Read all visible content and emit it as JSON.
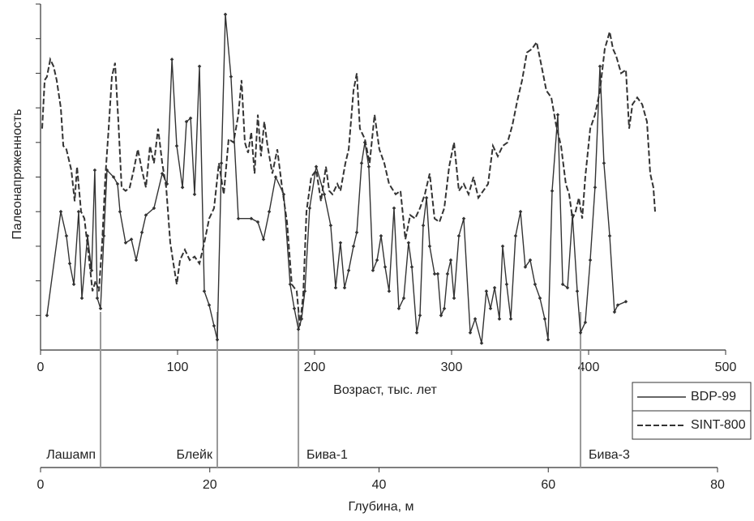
{
  "chart_data": {
    "type": "line",
    "y_label": "Палеонапряженность",
    "x_label": "Возраст, тыс. лет",
    "xlim": [
      0,
      500
    ],
    "xticks": [
      0,
      100,
      200,
      300,
      400,
      500
    ],
    "ylim": [
      0,
      10
    ],
    "yticks": [
      1,
      2,
      3,
      4,
      5,
      6,
      7,
      8,
      9,
      10
    ],
    "depth_axis": {
      "label": "Глубина, м",
      "xlim": [
        0,
        80
      ],
      "xticks": [
        0,
        20,
        40,
        60,
        80
      ]
    },
    "events": [
      {
        "label": "Лашамп",
        "age": 43.8,
        "side": "left"
      },
      {
        "label": "Блейк",
        "age": 129,
        "side": "left"
      },
      {
        "label": "Бива-1",
        "age": 188.2,
        "side": "right"
      },
      {
        "label": "Бива-3",
        "age": 394.1,
        "side": "right"
      }
    ],
    "series": [
      {
        "name": "BDP-99",
        "color": "#333333",
        "dash": false,
        "markers": true,
        "x": [
          4.7,
          14.8,
          18.9,
          21.3,
          24.3,
          27.8,
          30.2,
          34.3,
          37.3,
          39.6,
          41.4,
          43.8,
          46.2,
          48.5,
          53.3,
          56.2,
          58,
          62.1,
          66.3,
          69.8,
          74,
          76.9,
          82.8,
          88.8,
          92.3,
          95.9,
          99.4,
          103.6,
          106.5,
          109.5,
          112.4,
          116,
          119.5,
          123.1,
          126.6,
          129,
          132,
          134.9,
          139,
          144.4,
          153.8,
          158.6,
          162.7,
          166.9,
          171.6,
          177.5,
          182.2,
          185.2,
          188.2,
          190.5,
          192.9,
          196.4,
          201.2,
          207.1,
          211.8,
          215.4,
          218.9,
          221.9,
          224.9,
          228.4,
          230.8,
          234.3,
          236.7,
          239.6,
          242.6,
          245.6,
          248.5,
          251.5,
          254.4,
          258,
          261.5,
          265.1,
          268.6,
          271,
          274.6,
          276.9,
          279.3,
          281.7,
          284,
          287.6,
          289.9,
          292.3,
          294.7,
          297,
          299.4,
          301.8,
          305.3,
          308.9,
          313.6,
          317.2,
          321.9,
          325.4,
          328.4,
          331.4,
          334.9,
          337.3,
          340.2,
          343.2,
          346.7,
          350.3,
          353.8,
          357.4,
          360.9,
          364.5,
          368,
          370.4,
          373.4,
          377.5,
          381.1,
          384.6,
          388.2,
          391.7,
          394.1,
          397.6,
          401.2,
          404.7,
          408.3,
          411.2,
          415.4,
          418.9,
          421.3,
          427.2
        ],
        "values": [
          1.0,
          4.0,
          3.3,
          2.5,
          1.9,
          4.0,
          1.5,
          3.3,
          2.3,
          5.2,
          1.5,
          1.2,
          3.3,
          5.2,
          5.0,
          4.8,
          4.0,
          3.1,
          3.2,
          2.6,
          3.4,
          3.9,
          4.1,
          5.1,
          4.8,
          8.4,
          5.9,
          4.7,
          6.6,
          6.7,
          4.5,
          8.2,
          1.7,
          1.3,
          0.7,
          0.3,
          5.4,
          9.7,
          7.9,
          3.8,
          3.8,
          3.7,
          3.2,
          4.0,
          5.0,
          4.5,
          1.9,
          1.2,
          0.6,
          0.9,
          1.7,
          4.1,
          5.3,
          4.5,
          3.6,
          1.8,
          3.1,
          1.8,
          2.3,
          3.0,
          3.4,
          5.4,
          6.0,
          5.3,
          2.3,
          2.6,
          3.3,
          2.4,
          1.7,
          4.1,
          1.2,
          1.5,
          3.1,
          2.4,
          0.5,
          1.0,
          3.6,
          4.4,
          3.0,
          2.2,
          2.2,
          1.0,
          1.2,
          2.2,
          2.6,
          1.5,
          3.3,
          3.8,
          0.5,
          0.9,
          0.2,
          1.7,
          1.2,
          1.8,
          0.9,
          3.0,
          1.9,
          0.9,
          3.3,
          4.0,
          2.4,
          2.6,
          1.9,
          1.5,
          0.9,
          0.3,
          4.6,
          6.8,
          1.9,
          1.8,
          3.9,
          1.7,
          0.5,
          0.8,
          2.6,
          4.7,
          8.2,
          5.4,
          3.3,
          1.1,
          1.3,
          1.4
        ]
      },
      {
        "name": "SINT-800",
        "color": "#333333",
        "dash": true,
        "markers": false,
        "x": [
          1.2,
          3.0,
          4.7,
          7.1,
          9.5,
          11.8,
          14.8,
          16.6,
          18.9,
          22.5,
          24.9,
          26.6,
          29.6,
          32.0,
          35.5,
          37.9,
          40.2,
          42.6,
          45.0,
          47.3,
          49.7,
          52.1,
          54.4,
          56.8,
          59.2,
          62.1,
          65.1,
          68.0,
          71.0,
          74.0,
          76.9,
          79.9,
          82.8,
          85.8,
          88.8,
          91.7,
          94.7,
          97.0,
          99.4,
          101.8,
          105.3,
          108.9,
          112.4,
          116.0,
          119.5,
          123.1,
          126.6,
          130.2,
          133.7,
          137.3,
          140.8,
          144.4,
          146.7,
          149.1,
          151.5,
          153.8,
          156.2,
          158.6,
          160.9,
          163.3,
          165.7,
          169.2,
          172.8,
          176.3,
          179.9,
          183.4,
          187.0,
          189.3,
          191.7,
          194.1,
          197.6,
          201.2,
          204.7,
          208.3,
          210.7,
          213.0,
          216.6,
          218.9,
          222.5,
          224.9,
          228.4,
          230.8,
          233.1,
          236.7,
          240.2,
          243.8,
          247.3,
          250.9,
          254.4,
          259.2,
          262.7,
          266.3,
          269.8,
          273.4,
          276.9,
          280.5,
          284.0,
          287.6,
          291.1,
          294.7,
          298.2,
          301.8,
          305.3,
          308.9,
          312.4,
          316.0,
          319.5,
          323.1,
          326.6,
          330.2,
          333.7,
          337.3,
          340.8,
          344.4,
          347.9,
          351.5,
          355.0,
          358.6,
          362.1,
          365.7,
          369.2,
          372.8,
          376.3,
          379.9,
          383.4,
          385.8,
          388.2,
          390.5,
          392.9,
          395.3,
          397.6,
          401.2,
          404.7,
          408.3,
          411.8,
          415.4,
          417.8,
          420.1,
          423.7,
          427.2,
          429.6,
          432.0,
          435.5,
          439.1,
          442.6,
          445.0,
          447.3,
          448.5
        ],
        "values": [
          6.4,
          7.8,
          7.9,
          8.4,
          8.2,
          7.8,
          7.0,
          5.9,
          5.8,
          5.2,
          4.3,
          5.3,
          4.0,
          3.8,
          2.6,
          1.7,
          2.0,
          1.7,
          3.1,
          5.0,
          6.4,
          7.9,
          8.3,
          6.6,
          4.7,
          4.6,
          4.7,
          5.2,
          5.8,
          5.2,
          4.7,
          5.9,
          5.4,
          6.4,
          5.4,
          4.7,
          3.1,
          2.5,
          1.9,
          2.6,
          2.9,
          2.6,
          2.7,
          2.5,
          3.1,
          3.8,
          4.1,
          5.4,
          4.5,
          6.1,
          6.0,
          6.8,
          7.8,
          6.0,
          5.7,
          6.3,
          5.1,
          6.8,
          5.6,
          6.6,
          5.9,
          5.1,
          5.8,
          4.7,
          3.7,
          1.9,
          1.7,
          0.7,
          1.6,
          4.0,
          5.0,
          5.2,
          4.3,
          5.3,
          4.6,
          4.5,
          4.8,
          4.6,
          5.4,
          5.8,
          7.5,
          8.0,
          6.4,
          6.1,
          5.4,
          6.8,
          5.8,
          5.4,
          4.8,
          4.5,
          4.6,
          3.2,
          3.9,
          3.8,
          4.1,
          4.5,
          5.1,
          3.8,
          3.7,
          4.1,
          5.3,
          6.0,
          4.6,
          4.8,
          4.5,
          5.0,
          4.4,
          4.6,
          4.8,
          5.9,
          5.6,
          5.9,
          6.0,
          6.5,
          7.2,
          7.8,
          8.6,
          8.7,
          8.9,
          8.2,
          7.5,
          7.3,
          6.5,
          5.9,
          4.8,
          4.5,
          3.8,
          4.0,
          4.4,
          3.8,
          5.0,
          6.4,
          6.8,
          7.5,
          8.7,
          9.2,
          8.7,
          8.5,
          8.0,
          8.1,
          6.4,
          7.1,
          7.3,
          7.1,
          6.6,
          5.1,
          4.7,
          4.0
        ]
      }
    ]
  }
}
